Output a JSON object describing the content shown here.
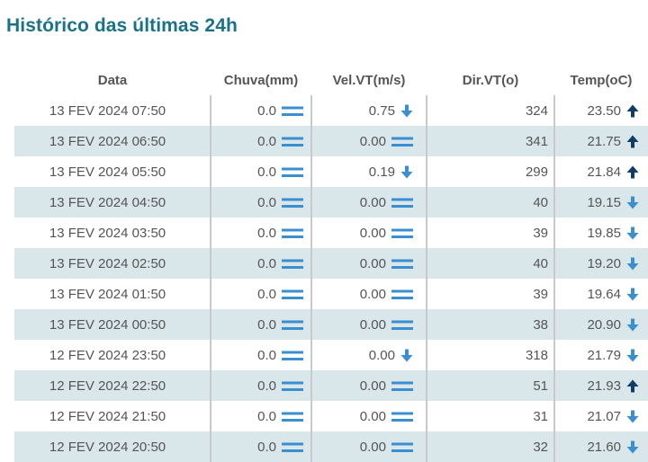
{
  "page": {
    "title": "Histórico das últimas 24h"
  },
  "colors": {
    "title": "#1a7288",
    "stripe": "#d9e6ea",
    "eq_icon": "#3a8fd0",
    "arrow_down": "#3a8fd0",
    "arrow_up": "#0f3d66"
  },
  "table": {
    "headers": {
      "date": "Data",
      "rain": "Chuva(mm)",
      "wind_speed": "Vel.VT(m/s)",
      "wind_dir": "Dir.VT(o)",
      "temp": "Temp(oC)"
    },
    "rows": [
      {
        "date": "13 FEV 2024 07:50",
        "rain": "0.0",
        "rain_icon": "equal-icon",
        "wind_speed": "0.75",
        "wind_icon": "arrow-down-icon",
        "wind_dir": "324",
        "temp": "23.50",
        "temp_icon": "arrow-up-icon"
      },
      {
        "date": "13 FEV 2024 06:50",
        "rain": "0.0",
        "rain_icon": "equal-icon",
        "wind_speed": "0.00",
        "wind_icon": "equal-icon",
        "wind_dir": "341",
        "temp": "21.75",
        "temp_icon": "arrow-up-icon"
      },
      {
        "date": "13 FEV 2024 05:50",
        "rain": "0.0",
        "rain_icon": "equal-icon",
        "wind_speed": "0.19",
        "wind_icon": "arrow-down-icon",
        "wind_dir": "299",
        "temp": "21.84",
        "temp_icon": "arrow-up-icon"
      },
      {
        "date": "13 FEV 2024 04:50",
        "rain": "0.0",
        "rain_icon": "equal-icon",
        "wind_speed": "0.00",
        "wind_icon": "equal-icon",
        "wind_dir": "40",
        "temp": "19.15",
        "temp_icon": "arrow-down-icon"
      },
      {
        "date": "13 FEV 2024 03:50",
        "rain": "0.0",
        "rain_icon": "equal-icon",
        "wind_speed": "0.00",
        "wind_icon": "equal-icon",
        "wind_dir": "39",
        "temp": "19.85",
        "temp_icon": "arrow-down-icon"
      },
      {
        "date": "13 FEV 2024 02:50",
        "rain": "0.0",
        "rain_icon": "equal-icon",
        "wind_speed": "0.00",
        "wind_icon": "equal-icon",
        "wind_dir": "40",
        "temp": "19.20",
        "temp_icon": "arrow-down-icon"
      },
      {
        "date": "13 FEV 2024 01:50",
        "rain": "0.0",
        "rain_icon": "equal-icon",
        "wind_speed": "0.00",
        "wind_icon": "equal-icon",
        "wind_dir": "39",
        "temp": "19.64",
        "temp_icon": "arrow-down-icon"
      },
      {
        "date": "13 FEV 2024 00:50",
        "rain": "0.0",
        "rain_icon": "equal-icon",
        "wind_speed": "0.00",
        "wind_icon": "equal-icon",
        "wind_dir": "38",
        "temp": "20.90",
        "temp_icon": "arrow-down-icon"
      },
      {
        "date": "12 FEV 2024 23:50",
        "rain": "0.0",
        "rain_icon": "equal-icon",
        "wind_speed": "0.00",
        "wind_icon": "arrow-down-icon",
        "wind_dir": "318",
        "temp": "21.79",
        "temp_icon": "arrow-down-icon"
      },
      {
        "date": "12 FEV 2024 22:50",
        "rain": "0.0",
        "rain_icon": "equal-icon",
        "wind_speed": "0.00",
        "wind_icon": "equal-icon",
        "wind_dir": "51",
        "temp": "21.93",
        "temp_icon": "arrow-up-icon"
      },
      {
        "date": "12 FEV 2024 21:50",
        "rain": "0.0",
        "rain_icon": "equal-icon",
        "wind_speed": "0.00",
        "wind_icon": "equal-icon",
        "wind_dir": "31",
        "temp": "21.07",
        "temp_icon": "arrow-down-icon"
      },
      {
        "date": "12 FEV 2024 20:50",
        "rain": "0.0",
        "rain_icon": "equal-icon",
        "wind_speed": "0.00",
        "wind_icon": "equal-icon",
        "wind_dir": "32",
        "temp": "21.60",
        "temp_icon": "arrow-down-icon"
      }
    ]
  }
}
